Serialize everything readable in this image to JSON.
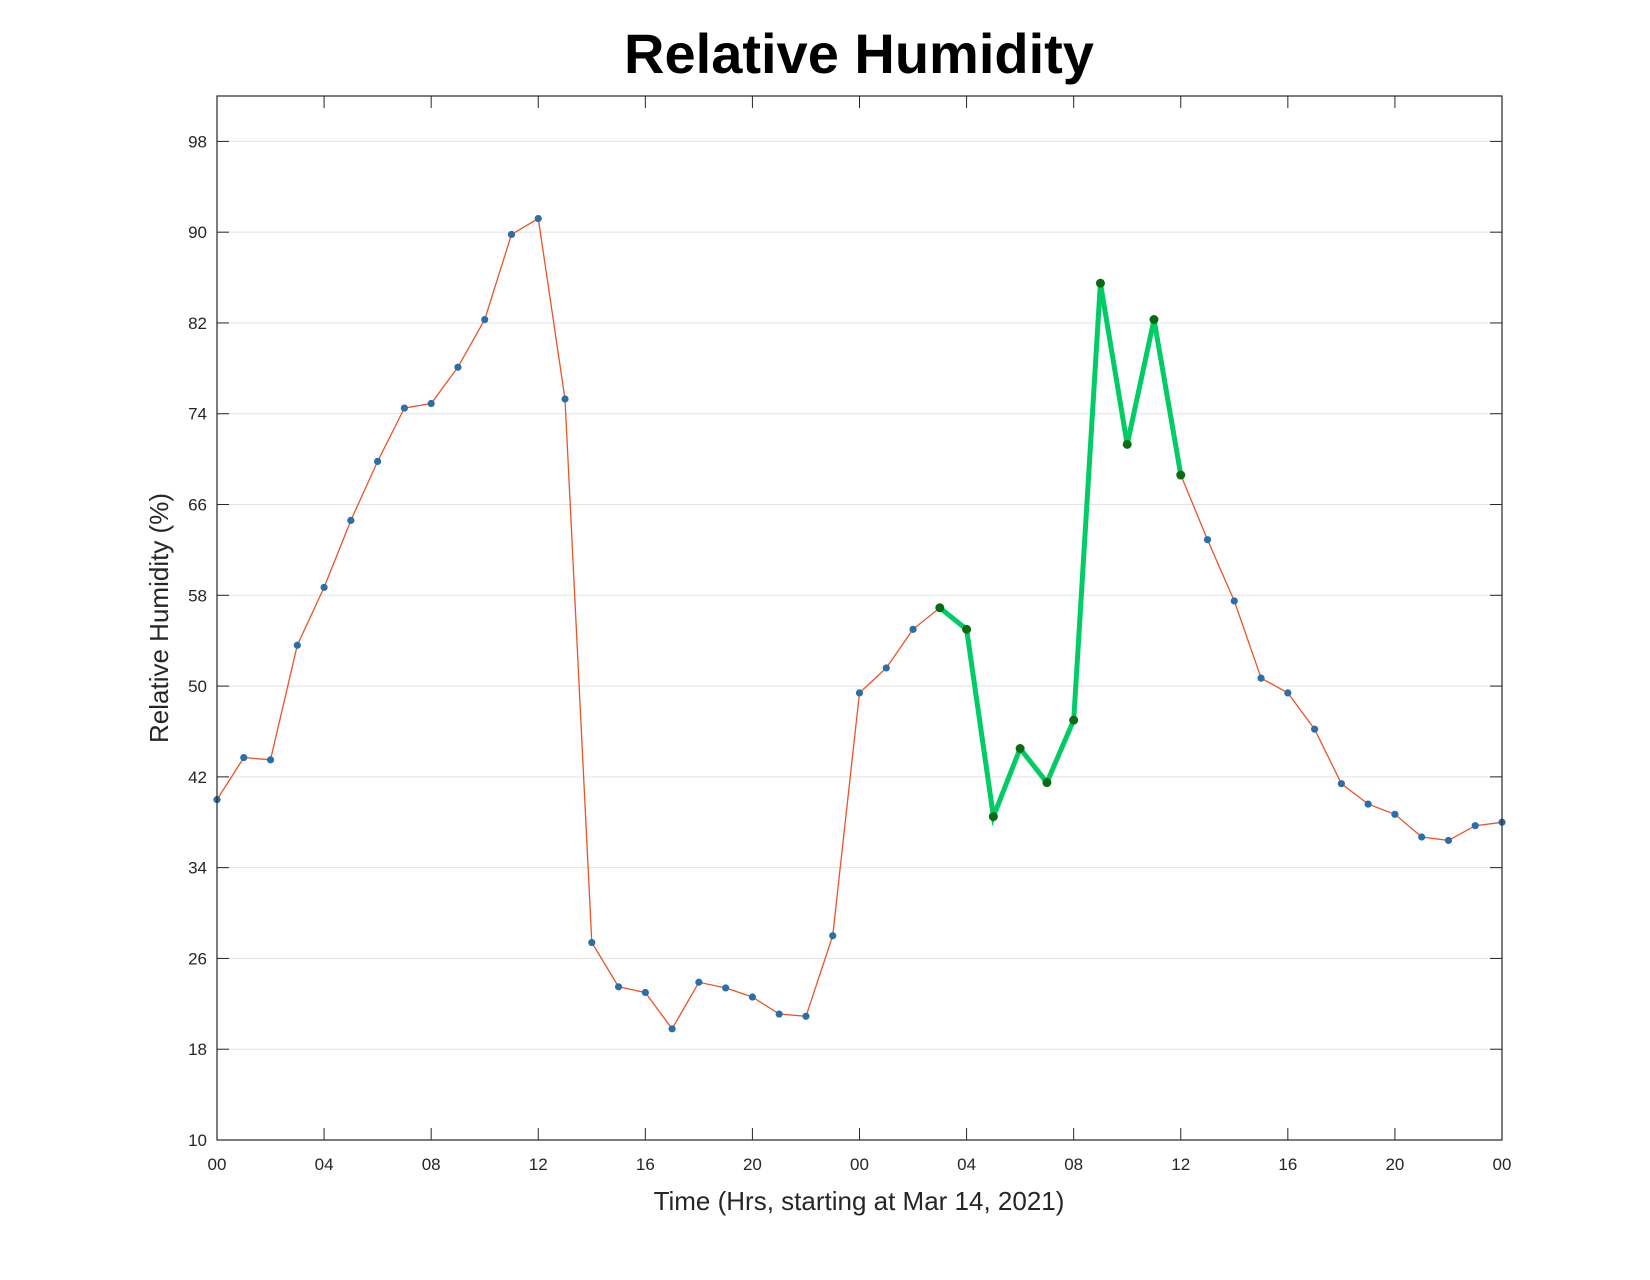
{
  "chart_data": {
    "type": "line",
    "title": "Relative Humidity",
    "xlabel": "Time (Hrs, starting at Mar 14, 2021)",
    "ylabel": "Relative Humidity (%)",
    "ylim": [
      10,
      102
    ],
    "yticks": [
      10,
      18,
      26,
      34,
      42,
      50,
      58,
      66,
      74,
      82,
      90,
      98
    ],
    "xlim": [
      0,
      48
    ],
    "xticks": [
      0,
      4,
      8,
      12,
      16,
      20,
      24,
      28,
      32,
      36,
      40,
      44,
      48
    ],
    "xtick_labels": [
      "00",
      "04",
      "08",
      "12",
      "16",
      "20",
      "00",
      "04",
      "08",
      "12",
      "16",
      "20",
      "00"
    ],
    "grid": "horizontal",
    "series": [
      {
        "style": "base",
        "line_color": "#e8552a",
        "marker_color": "#2b6fa8",
        "x": [
          0,
          1,
          2,
          3,
          4,
          5,
          6,
          7,
          8,
          9,
          10,
          11,
          12,
          13,
          14,
          15,
          16,
          17,
          18,
          19,
          20,
          21,
          22,
          23,
          24,
          25,
          26,
          27,
          28,
          29,
          30,
          31,
          32,
          33,
          34,
          35,
          36,
          37,
          38,
          39,
          40,
          41,
          42,
          43,
          44,
          45,
          46,
          47,
          48
        ],
        "values": [
          40.0,
          43.7,
          43.5,
          53.6,
          58.7,
          64.6,
          69.8,
          74.5,
          74.9,
          78.1,
          82.3,
          89.8,
          91.2,
          75.3,
          27.4,
          23.5,
          23.0,
          19.8,
          23.9,
          23.4,
          22.6,
          21.1,
          20.9,
          28.0,
          49.4,
          51.6,
          55.0,
          56.9,
          55.0,
          38.5,
          44.5,
          41.5,
          47.0,
          85.5,
          71.3,
          82.3,
          68.6,
          62.9,
          57.5,
          50.7,
          49.4,
          46.2,
          41.4,
          39.6,
          38.7,
          36.7,
          36.4,
          37.7,
          38.0
        ]
      },
      {
        "style": "highlight",
        "line_color": "#00cc66",
        "marker_color": "#0b6b12",
        "x": [
          27,
          28,
          29,
          30,
          31,
          32,
          33,
          34,
          35,
          36
        ],
        "values": [
          56.9,
          55.0,
          38.5,
          44.5,
          41.5,
          47.0,
          85.5,
          71.3,
          82.3,
          68.6
        ]
      }
    ]
  }
}
